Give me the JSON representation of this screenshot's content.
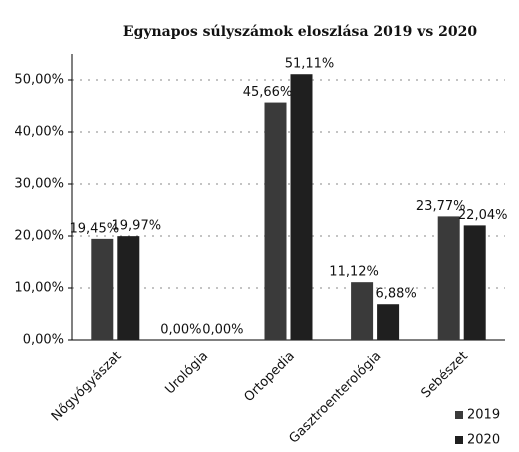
{
  "chart_data": {
    "type": "bar",
    "title": "Egynapos súlyszámok eloszlása 2019 vs 2020",
    "categories": [
      "Nőgyógyászat",
      "Urológia",
      "Ortopedia",
      "Gasztroenterológia",
      "Sebészet"
    ],
    "series": [
      {
        "name": "2019",
        "color": "#3a3a3a",
        "values": [
          19.45,
          0,
          45.66,
          11.12,
          23.77
        ],
        "value_labels": [
          "19,45%",
          "0,00%",
          "45,66%",
          "11,12%",
          "23,77%"
        ]
      },
      {
        "name": "2020",
        "color": "#1f1f1f",
        "values": [
          19.97,
          0,
          51.11,
          6.88,
          22.04
        ],
        "value_labels": [
          "19,97%",
          "0,00%",
          "51,11%",
          "6,88%",
          "22,04%"
        ]
      }
    ],
    "ylim": [
      0,
      55
    ],
    "yticks": [
      {
        "value": 0,
        "label": "0,00%"
      },
      {
        "value": 10,
        "label": "10,00%"
      },
      {
        "value": 20,
        "label": "20,00%"
      },
      {
        "value": 30,
        "label": "30,00%"
      },
      {
        "value": 40,
        "label": "40,00%"
      },
      {
        "value": 50,
        "label": "50,00%"
      }
    ],
    "grid": true,
    "legend": "bottom-right"
  }
}
